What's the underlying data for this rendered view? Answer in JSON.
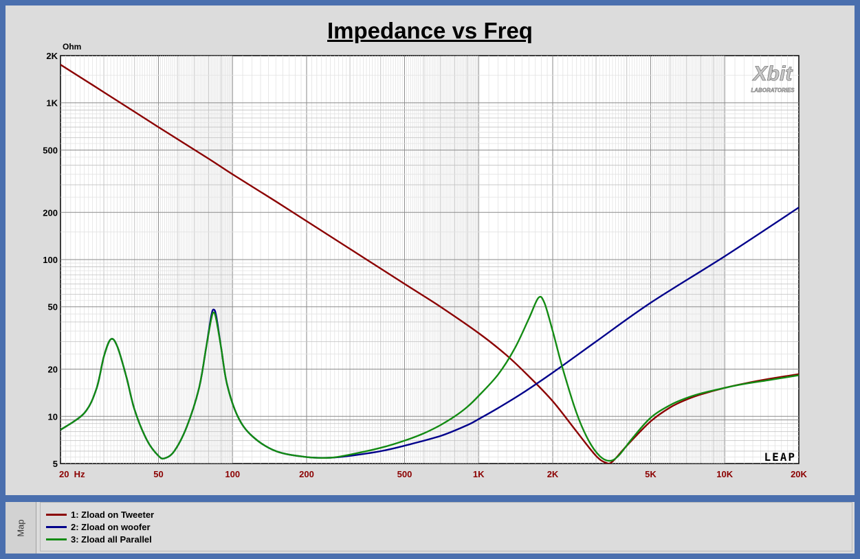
{
  "chart_data": {
    "type": "line",
    "title": "Impedance vs Freq",
    "ylabel": "Ohm",
    "xlabel": "",
    "xscale": "log",
    "yscale": "log",
    "xlim": [
      20,
      20000
    ],
    "ylim": [
      5,
      2000
    ],
    "x_ticks": [
      {
        "value": 20,
        "label": "20  Hz"
      },
      {
        "value": 50,
        "label": "50"
      },
      {
        "value": 100,
        "label": "100"
      },
      {
        "value": 200,
        "label": "200"
      },
      {
        "value": 500,
        "label": "500"
      },
      {
        "value": 1000,
        "label": "1K"
      },
      {
        "value": 2000,
        "label": "2K"
      },
      {
        "value": 5000,
        "label": "5K"
      },
      {
        "value": 10000,
        "label": "10K"
      },
      {
        "value": 20000,
        "label": "20K"
      }
    ],
    "y_ticks": [
      {
        "value": 2000,
        "label": "2K"
      },
      {
        "value": 1000,
        "label": "1K"
      },
      {
        "value": 500,
        "label": "500"
      },
      {
        "value": 200,
        "label": "200"
      },
      {
        "value": 100,
        "label": "100"
      },
      {
        "value": 50,
        "label": "50"
      },
      {
        "value": 20,
        "label": "20"
      },
      {
        "value": 10,
        "label": "10"
      },
      {
        "value": 5,
        "label": "5"
      }
    ],
    "grid": true,
    "series": [
      {
        "name": "1: Zload on Tweeter",
        "color": "#8b0000",
        "points": [
          [
            20,
            1750
          ],
          [
            30,
            1170
          ],
          [
            50,
            700
          ],
          [
            80,
            440
          ],
          [
            100,
            350
          ],
          [
            150,
            235
          ],
          [
            200,
            176
          ],
          [
            300,
            117
          ],
          [
            500,
            70
          ],
          [
            700,
            50
          ],
          [
            1000,
            34
          ],
          [
            1300,
            24.5
          ],
          [
            1600,
            18
          ],
          [
            2000,
            12.5
          ],
          [
            2500,
            8
          ],
          [
            3000,
            5.6
          ],
          [
            3300,
            5.05
          ],
          [
            3500,
            5.15
          ],
          [
            4000,
            6.5
          ],
          [
            5000,
            9.3
          ],
          [
            6000,
            11.4
          ],
          [
            7000,
            12.8
          ],
          [
            8000,
            13.8
          ],
          [
            10000,
            15.2
          ],
          [
            12000,
            16.2
          ],
          [
            15000,
            17.3
          ],
          [
            20000,
            18.6
          ]
        ]
      },
      {
        "name": "2: Zload on woofer",
        "color": "#00008b",
        "points": [
          [
            20,
            8.2
          ],
          [
            25,
            10.5
          ],
          [
            28,
            15
          ],
          [
            30,
            24
          ],
          [
            32,
            31
          ],
          [
            34,
            28
          ],
          [
            37,
            18
          ],
          [
            40,
            11
          ],
          [
            45,
            7
          ],
          [
            50,
            5.6
          ],
          [
            53,
            5.4
          ],
          [
            58,
            6
          ],
          [
            65,
            8.5
          ],
          [
            73,
            15
          ],
          [
            78,
            27
          ],
          [
            82,
            44
          ],
          [
            84,
            48
          ],
          [
            86,
            43
          ],
          [
            90,
            27
          ],
          [
            95,
            16
          ],
          [
            105,
            10
          ],
          [
            120,
            7.5
          ],
          [
            150,
            6
          ],
          [
            200,
            5.5
          ],
          [
            250,
            5.45
          ],
          [
            300,
            5.6
          ],
          [
            400,
            6
          ],
          [
            500,
            6.5
          ],
          [
            700,
            7.5
          ],
          [
            900,
            8.8
          ],
          [
            1000,
            9.6
          ],
          [
            1200,
            11.3
          ],
          [
            1500,
            14
          ],
          [
            2000,
            19
          ],
          [
            3000,
            30
          ],
          [
            5000,
            53
          ],
          [
            10000,
            105
          ],
          [
            20000,
            215
          ]
        ]
      },
      {
        "name": "3: Zload all Parallel",
        "color": "#138b13",
        "points": [
          [
            20,
            8.2
          ],
          [
            25,
            10.5
          ],
          [
            28,
            15
          ],
          [
            30,
            24
          ],
          [
            32,
            31
          ],
          [
            34,
            28
          ],
          [
            37,
            18
          ],
          [
            40,
            11
          ],
          [
            45,
            7
          ],
          [
            50,
            5.6
          ],
          [
            53,
            5.4
          ],
          [
            58,
            6
          ],
          [
            65,
            8.5
          ],
          [
            73,
            15
          ],
          [
            78,
            27
          ],
          [
            82,
            42
          ],
          [
            84,
            46
          ],
          [
            86,
            41
          ],
          [
            90,
            27
          ],
          [
            95,
            16
          ],
          [
            105,
            10
          ],
          [
            120,
            7.5
          ],
          [
            150,
            6
          ],
          [
            200,
            5.5
          ],
          [
            250,
            5.45
          ],
          [
            300,
            5.7
          ],
          [
            400,
            6.3
          ],
          [
            500,
            7
          ],
          [
            600,
            7.8
          ],
          [
            700,
            8.8
          ],
          [
            800,
            10
          ],
          [
            900,
            11.5
          ],
          [
            1000,
            13.5
          ],
          [
            1200,
            18.5
          ],
          [
            1400,
            27
          ],
          [
            1600,
            42
          ],
          [
            1750,
            57
          ],
          [
            1850,
            53
          ],
          [
            2000,
            35
          ],
          [
            2200,
            20
          ],
          [
            2500,
            10.5
          ],
          [
            2800,
            7
          ],
          [
            3100,
            5.6
          ],
          [
            3400,
            5.2
          ],
          [
            3700,
            5.6
          ],
          [
            4200,
            7.2
          ],
          [
            5000,
            9.8
          ],
          [
            6000,
            11.8
          ],
          [
            7000,
            13.1
          ],
          [
            8000,
            14
          ],
          [
            10000,
            15.2
          ],
          [
            12000,
            16.1
          ],
          [
            15000,
            17
          ],
          [
            20000,
            18.3
          ]
        ]
      }
    ],
    "legend_position": "bottom"
  },
  "watermark": {
    "text": "Xbit",
    "sub": "LABORATORIES"
  },
  "leap_logo": "LEAP",
  "map_tab_label": "Map"
}
